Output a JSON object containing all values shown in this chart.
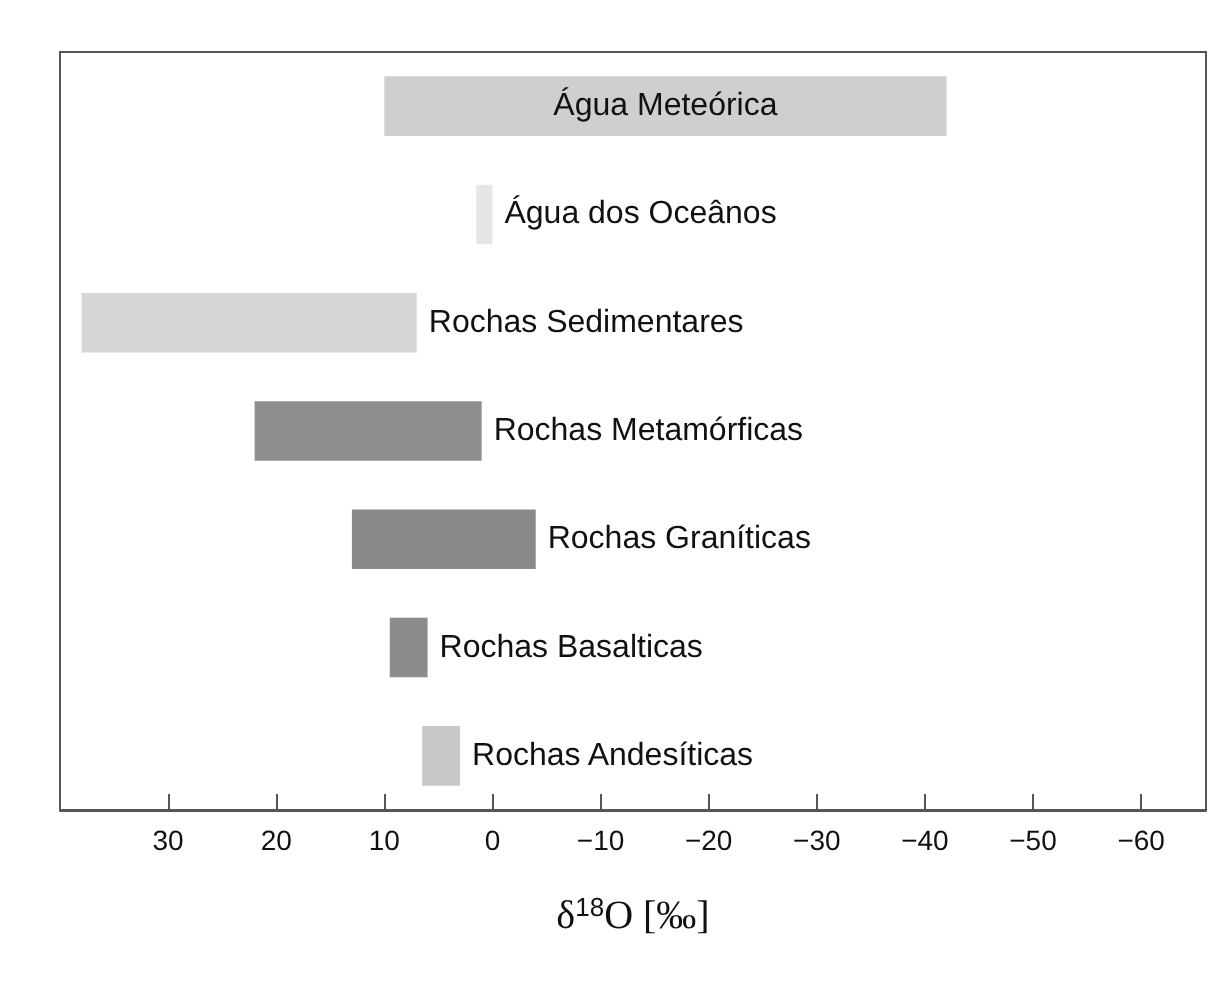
{
  "chart_data": {
    "type": "bar",
    "orientation": "horizontal",
    "xlabel": "δ$^{18}$O [‰]",
    "categories": [
      "Água Meteórica",
      "Água dos Oceânos",
      "Rochas Sedimentares",
      "Rochas Metamórficas",
      "Rochas Graníticas",
      "Rochas Basalticas",
      "Rochas Andesíticas"
    ],
    "base": [
      -42,
      0,
      7,
      1,
      -4,
      6,
      3
    ],
    "values": [
      52,
      1.5,
      31,
      21,
      17,
      3.5,
      3.5
    ],
    "colors": [
      "#cfcfcf",
      "#e6e6e6",
      "#d6d6d6",
      "#8e8e8e",
      "#8a8a8a",
      "#8c8c8c",
      "#c8c8c8"
    ],
    "xlim": [
      40,
      -66
    ],
    "xticks": [
      30,
      20,
      10,
      0,
      {
        "value": -10,
        "label": "−10"
      },
      {
        "value": -20,
        "label": "−20"
      },
      {
        "value": -30,
        "label": "−30"
      },
      {
        "value": -40,
        "label": "−40"
      },
      {
        "value": -50,
        "label": "−50"
      },
      {
        "value": -60,
        "label": "−60"
      }
    ],
    "tick_labels": "x",
    "grid": false
  }
}
